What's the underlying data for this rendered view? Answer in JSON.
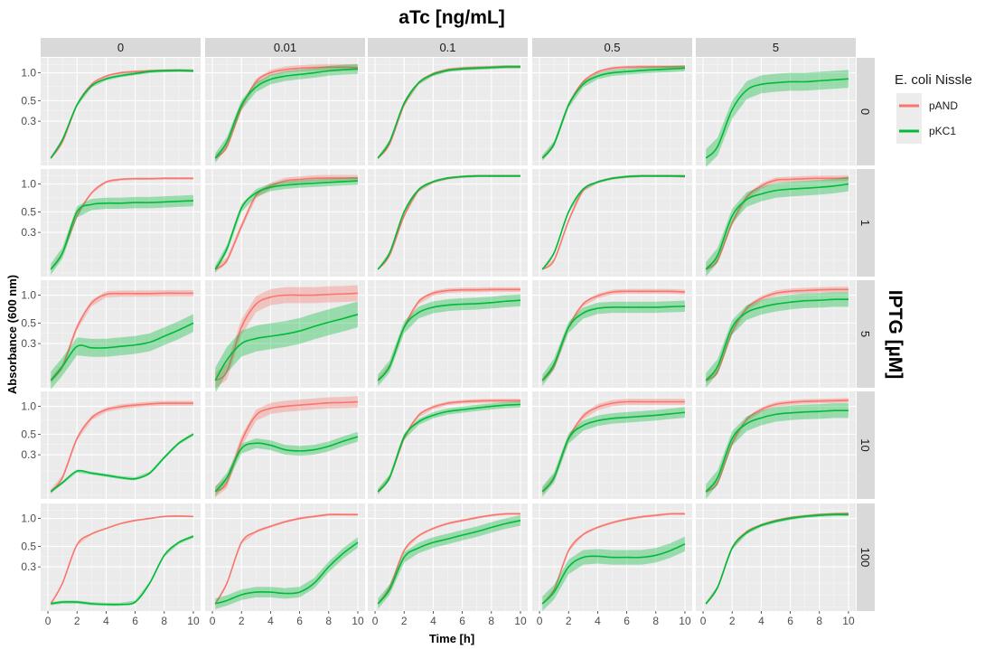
{
  "chart_data": {
    "type": "line",
    "title": "aTc [ng/mL]",
    "xlabel": "Time [h]",
    "ylabel": "Absorbance (600 nm)",
    "facet_col_label": "aTc [ng/mL]",
    "facet_row_label": "IPTG [µM]",
    "facet_cols": [
      "0",
      "0.01",
      "0.1",
      "0.5",
      "5"
    ],
    "facet_rows": [
      "0",
      "1",
      "5",
      "10",
      "100"
    ],
    "x_scale": "linear",
    "y_scale": "log10",
    "xlim": [
      0,
      10
    ],
    "ylim": [
      0.1,
      1.45
    ],
    "x_ticks": [
      "0",
      "2",
      "4",
      "6",
      "8",
      "10"
    ],
    "y_ticks": [
      "0.3",
      "0.5",
      "1.0"
    ],
    "grid": true,
    "legend": {
      "title": "E. coli Nissle",
      "position": "right",
      "entries": [
        "pAND",
        "pKC1"
      ]
    },
    "colors": {
      "pAND": "#F8766D",
      "pKC1": "#00BA38"
    },
    "x": [
      0.2,
      1,
      2,
      3,
      4,
      5,
      6,
      7,
      8,
      9,
      10
    ],
    "ribbon": "mean ± relative spread",
    "panels": [
      [
        {
          "pAND": {
            "values": [
              0.12,
              0.18,
              0.45,
              0.75,
              0.92,
              1.0,
              1.03,
              1.05,
              1.06,
              1.06,
              1.05
            ],
            "spread": 0.03
          },
          "pKC1": {
            "values": [
              0.12,
              0.19,
              0.45,
              0.72,
              0.86,
              0.93,
              0.98,
              1.03,
              1.05,
              1.06,
              1.05
            ],
            "spread": 0.04
          }
        },
        {
          "pAND": {
            "values": [
              0.12,
              0.16,
              0.42,
              0.8,
              1.0,
              1.08,
              1.12,
              1.14,
              1.15,
              1.15,
              1.14
            ],
            "spread": 0.08
          },
          "pKC1": {
            "values": [
              0.12,
              0.18,
              0.45,
              0.7,
              0.85,
              0.92,
              0.96,
              1.0,
              1.05,
              1.08,
              1.1
            ],
            "spread": 0.13
          }
        },
        {
          "pAND": {
            "values": [
              0.12,
              0.17,
              0.45,
              0.78,
              0.98,
              1.08,
              1.12,
              1.14,
              1.15,
              1.16,
              1.16
            ],
            "spread": 0.04
          },
          "pKC1": {
            "values": [
              0.12,
              0.18,
              0.47,
              0.78,
              0.96,
              1.06,
              1.1,
              1.12,
              1.14,
              1.16,
              1.16
            ],
            "spread": 0.04
          }
        },
        {
          "pAND": {
            "values": [
              0.12,
              0.17,
              0.45,
              0.8,
              1.02,
              1.12,
              1.15,
              1.16,
              1.16,
              1.16,
              1.16
            ],
            "spread": 0.04
          },
          "pKC1": {
            "values": [
              0.12,
              0.17,
              0.45,
              0.75,
              0.92,
              1.0,
              1.03,
              1.06,
              1.08,
              1.1,
              1.12
            ],
            "spread": 0.08
          }
        },
        {
          "pKC1": {
            "values": [
              0.12,
              0.16,
              0.4,
              0.65,
              0.75,
              0.78,
              0.8,
              0.8,
              0.82,
              0.84,
              0.86
            ],
            "spread": 0.25
          }
        }
      ],
      [
        {
          "pAND": {
            "values": [
              0.12,
              0.18,
              0.45,
              0.8,
              1.05,
              1.12,
              1.14,
              1.14,
              1.15,
              1.15,
              1.15
            ],
            "spread": 0.03
          },
          "pKC1": {
            "values": [
              0.12,
              0.18,
              0.5,
              0.6,
              0.62,
              0.62,
              0.63,
              0.63,
              0.64,
              0.65,
              0.66
            ],
            "spread": 0.15
          }
        },
        {
          "pAND": {
            "values": [
              0.12,
              0.15,
              0.35,
              0.75,
              0.95,
              1.08,
              1.12,
              1.15,
              1.16,
              1.16,
              1.16
            ],
            "spread": 0.08
          },
          "pKC1": {
            "values": [
              0.12,
              0.2,
              0.55,
              0.8,
              0.92,
              0.97,
              1.0,
              1.02,
              1.04,
              1.06,
              1.08
            ],
            "spread": 0.1
          }
        },
        {
          "pAND": {
            "values": [
              0.12,
              0.17,
              0.45,
              0.85,
              1.05,
              1.15,
              1.2,
              1.22,
              1.22,
              1.22,
              1.22
            ],
            "spread": 0.03
          },
          "pKC1": {
            "values": [
              0.12,
              0.18,
              0.5,
              0.87,
              1.06,
              1.16,
              1.2,
              1.22,
              1.22,
              1.22,
              1.22
            ],
            "spread": 0.03
          }
        },
        {
          "pAND": {
            "values": [
              0.12,
              0.15,
              0.4,
              0.85,
              1.05,
              1.15,
              1.2,
              1.22,
              1.22,
              1.22,
              1.2
            ],
            "spread": 0.03
          },
          "pKC1": {
            "values": [
              0.12,
              0.18,
              0.5,
              0.88,
              1.05,
              1.15,
              1.2,
              1.22,
              1.22,
              1.22,
              1.22
            ],
            "spread": 0.03
          }
        },
        {
          "pAND": {
            "values": [
              0.12,
              0.15,
              0.38,
              0.72,
              0.95,
              1.1,
              1.12,
              1.14,
              1.15,
              1.15,
              1.16
            ],
            "spread": 0.07
          },
          "pKC1": {
            "values": [
              0.12,
              0.17,
              0.45,
              0.68,
              0.78,
              0.85,
              0.88,
              0.9,
              0.92,
              0.95,
              1.0
            ],
            "spread": 0.2
          }
        }
      ],
      [
        {
          "pAND": {
            "values": [
              0.12,
              0.17,
              0.45,
              0.82,
              1.02,
              1.04,
              1.04,
              1.04,
              1.05,
              1.05,
              1.05
            ],
            "spread": 0.08
          },
          "pKC1": {
            "values": [
              0.12,
              0.17,
              0.28,
              0.27,
              0.27,
              0.28,
              0.29,
              0.31,
              0.36,
              0.42,
              0.5
            ],
            "spread": 0.25
          }
        },
        {
          "pAND": {
            "values": [
              0.12,
              0.15,
              0.45,
              0.8,
              0.95,
              1.0,
              1.0,
              1.0,
              1.02,
              1.03,
              1.05
            ],
            "spread": 0.22
          },
          "pKC1": {
            "values": [
              0.12,
              0.2,
              0.3,
              0.34,
              0.36,
              0.38,
              0.41,
              0.46,
              0.51,
              0.56,
              0.62
            ],
            "spread": 0.38
          }
        },
        {
          "pAND": {
            "values": [
              0.12,
              0.17,
              0.45,
              0.85,
              1.05,
              1.12,
              1.14,
              1.14,
              1.15,
              1.15,
              1.15
            ],
            "spread": 0.06
          },
          "pKC1": {
            "values": [
              0.12,
              0.17,
              0.45,
              0.65,
              0.74,
              0.78,
              0.8,
              0.81,
              0.83,
              0.86,
              0.88
            ],
            "spread": 0.16
          }
        },
        {
          "pAND": {
            "values": [
              0.12,
              0.17,
              0.45,
              0.8,
              0.98,
              1.08,
              1.1,
              1.1,
              1.1,
              1.1,
              1.08
            ],
            "spread": 0.06
          },
          "pKC1": {
            "values": [
              0.12,
              0.18,
              0.45,
              0.64,
              0.72,
              0.74,
              0.74,
              0.74,
              0.74,
              0.75,
              0.76
            ],
            "spread": 0.15
          }
        },
        {
          "pAND": {
            "values": [
              0.12,
              0.15,
              0.4,
              0.72,
              0.92,
              1.05,
              1.1,
              1.12,
              1.14,
              1.15,
              1.15
            ],
            "spread": 0.07
          },
          "pKC1": {
            "values": [
              0.12,
              0.17,
              0.45,
              0.65,
              0.74,
              0.8,
              0.84,
              0.87,
              0.88,
              0.9,
              0.9
            ],
            "spread": 0.2
          }
        }
      ],
      [
        {
          "pAND": {
            "values": [
              0.12,
              0.17,
              0.45,
              0.75,
              0.92,
              0.99,
              1.03,
              1.06,
              1.08,
              1.08,
              1.08
            ],
            "spread": 0.06
          },
          "pKC1": {
            "values": [
              0.12,
              0.15,
              0.2,
              0.19,
              0.18,
              0.17,
              0.165,
              0.19,
              0.28,
              0.4,
              0.5
            ],
            "spread": 0.04
          }
        },
        {
          "pAND": {
            "values": [
              0.12,
              0.15,
              0.42,
              0.8,
              0.95,
              1.0,
              1.03,
              1.06,
              1.09,
              1.1,
              1.12
            ],
            "spread": 0.15
          },
          "pKC1": {
            "values": [
              0.12,
              0.17,
              0.35,
              0.4,
              0.38,
              0.34,
              0.33,
              0.34,
              0.37,
              0.42,
              0.47
            ],
            "spread": 0.13
          }
        },
        {
          "pAND": {
            "values": [
              0.12,
              0.17,
              0.45,
              0.8,
              0.98,
              1.08,
              1.12,
              1.14,
              1.15,
              1.15,
              1.15
            ],
            "spread": 0.05
          },
          "pKC1": {
            "values": [
              0.12,
              0.17,
              0.47,
              0.68,
              0.8,
              0.88,
              0.92,
              0.96,
              1.0,
              1.03,
              1.05
            ],
            "spread": 0.08
          }
        },
        {
          "pAND": {
            "values": [
              0.12,
              0.17,
              0.45,
              0.78,
              0.98,
              1.08,
              1.12,
              1.12,
              1.12,
              1.12,
              1.12
            ],
            "spread": 0.08
          },
          "pKC1": {
            "values": [
              0.12,
              0.17,
              0.45,
              0.62,
              0.7,
              0.74,
              0.76,
              0.78,
              0.8,
              0.83,
              0.86
            ],
            "spread": 0.14
          }
        },
        {
          "pAND": {
            "values": [
              0.12,
              0.15,
              0.4,
              0.72,
              0.92,
              1.05,
              1.1,
              1.13,
              1.14,
              1.15,
              1.16
            ],
            "spread": 0.06
          },
          "pKC1": {
            "values": [
              0.12,
              0.17,
              0.45,
              0.65,
              0.75,
              0.82,
              0.85,
              0.87,
              0.88,
              0.9,
              0.9
            ],
            "spread": 0.2
          }
        }
      ],
      [
        {
          "pAND": {
            "values": [
              0.12,
              0.2,
              0.52,
              0.68,
              0.78,
              0.88,
              0.95,
              1.0,
              1.05,
              1.06,
              1.05
            ],
            "spread": 0.02
          },
          "pKC1": {
            "values": [
              0.12,
              0.125,
              0.125,
              0.12,
              0.118,
              0.118,
              0.125,
              0.2,
              0.4,
              0.55,
              0.64
            ],
            "spread": 0.04
          }
        },
        {
          "pAND": {
            "values": [
              0.12,
              0.2,
              0.55,
              0.72,
              0.82,
              0.92,
              1.0,
              1.05,
              1.1,
              1.1,
              1.1
            ],
            "spread": 0.03
          },
          "pKC1": {
            "values": [
              0.12,
              0.13,
              0.15,
              0.16,
              0.16,
              0.155,
              0.16,
              0.2,
              0.3,
              0.42,
              0.55
            ],
            "spread": 0.14
          }
        },
        {
          "pAND": {
            "values": [
              0.12,
              0.18,
              0.45,
              0.65,
              0.78,
              0.88,
              0.95,
              1.02,
              1.08,
              1.12,
              1.12
            ],
            "spread": 0.03
          },
          "pKC1": {
            "values": [
              0.12,
              0.17,
              0.38,
              0.48,
              0.55,
              0.6,
              0.66,
              0.72,
              0.8,
              0.88,
              0.95
            ],
            "spread": 0.14
          }
        },
        {
          "pAND": {
            "values": [
              0.12,
              0.17,
              0.45,
              0.67,
              0.8,
              0.9,
              0.98,
              1.04,
              1.08,
              1.12,
              1.12
            ],
            "spread": 0.03
          },
          "pKC1": {
            "values": [
              0.12,
              0.16,
              0.3,
              0.38,
              0.39,
              0.38,
              0.38,
              0.38,
              0.4,
              0.45,
              0.53
            ],
            "spread": 0.2
          }
        },
        {
          "pAND": {
            "values": [
              0.12,
              0.18,
              0.48,
              0.72,
              0.85,
              0.95,
              1.02,
              1.06,
              1.1,
              1.12,
              1.13
            ],
            "spread": 0.03
          },
          "pKC1": {
            "values": [
              0.12,
              0.18,
              0.48,
              0.7,
              0.84,
              0.93,
              1.0,
              1.05,
              1.08,
              1.1,
              1.1
            ],
            "spread": 0.04
          }
        }
      ]
    ]
  }
}
